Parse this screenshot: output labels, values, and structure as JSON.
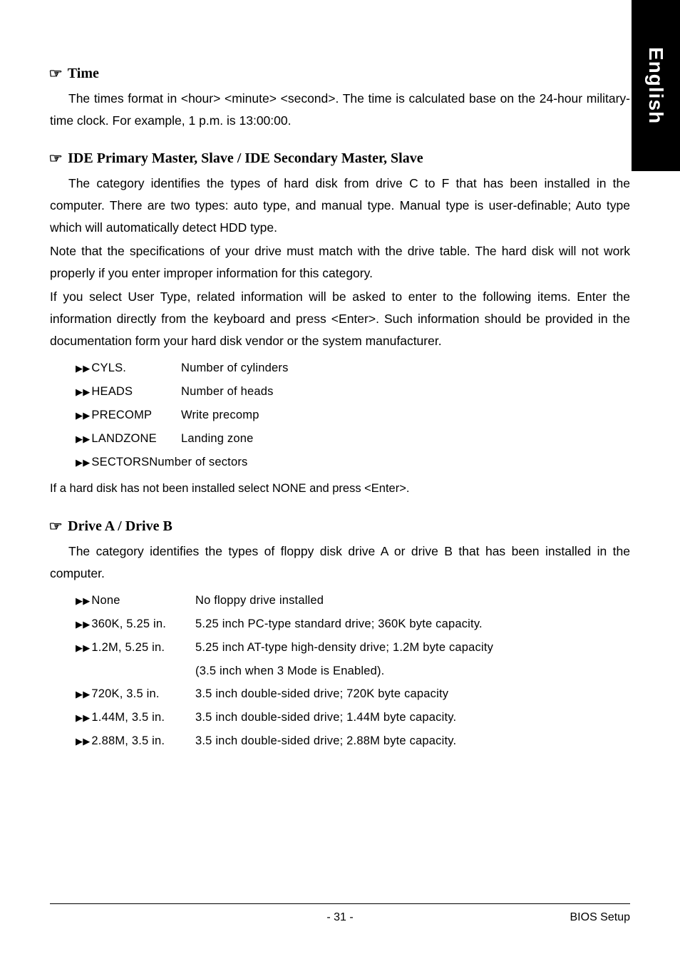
{
  "sideTab": "English",
  "sections": {
    "time": {
      "heading": "Time",
      "body": [
        "The times format in <hour> <minute> <second>. The time is calculated base on the 24-hour military-time clock. For example, 1 p.m. is 13:00:00."
      ]
    },
    "ide": {
      "heading": "IDE Primary Master, Slave / IDE Secondary Master, Slave",
      "body": [
        "The category identifies the types of hard disk from drive C to F that has been installed in the computer. There are two types: auto type, and manual type. Manual type is user-definable; Auto type which will automatically detect HDD type.",
        "Note that the specifications of your drive must match with the drive table. The hard disk will not work properly if you enter improper information for this category.",
        "If you select User Type, related information will be asked to enter to the following items. Enter the information directly from the keyboard and press <Enter>. Such information should be provided in the documentation form your hard disk vendor or the system manufacturer."
      ],
      "items": [
        {
          "k": "CYLS.",
          "v": "Number of cylinders"
        },
        {
          "k": "HEADS",
          "v": "Number of heads"
        },
        {
          "k": "PRECOMP",
          "v": "Write precomp"
        },
        {
          "k": "LANDZONE",
          "v": "Landing zone"
        }
      ],
      "lastItem": "SECTORSNumber of sectors",
      "afterList": "If a hard disk has not been installed select NONE and press <Enter>."
    },
    "drive": {
      "heading": "Drive A / Drive B",
      "body": [
        "The category identifies the types of floppy disk drive A or drive B that has been installed in the computer."
      ],
      "items": [
        {
          "k": "None",
          "v": "No floppy drive installed"
        },
        {
          "k": "360K, 5.25 in.",
          "v": "5.25 inch PC-type standard drive; 360K byte capacity."
        },
        {
          "k": "1.2M, 5.25 in.",
          "v": "5.25 inch AT-type high-density drive; 1.2M byte capacity"
        },
        {
          "k": "",
          "v": "(3.5 inch when 3 Mode is Enabled)."
        },
        {
          "k": "720K, 3.5 in.",
          "v": "3.5 inch double-sided drive; 720K byte capacity"
        },
        {
          "k": "1.44M, 3.5 in.",
          "v": "3.5 inch double-sided drive; 1.44M byte capacity."
        },
        {
          "k": "2.88M, 3.5 in.",
          "v": "3.5 inch double-sided drive; 2.88M byte capacity."
        }
      ]
    }
  },
  "footer": {
    "pageNum": "- 31 -",
    "right": "BIOS Setup"
  }
}
